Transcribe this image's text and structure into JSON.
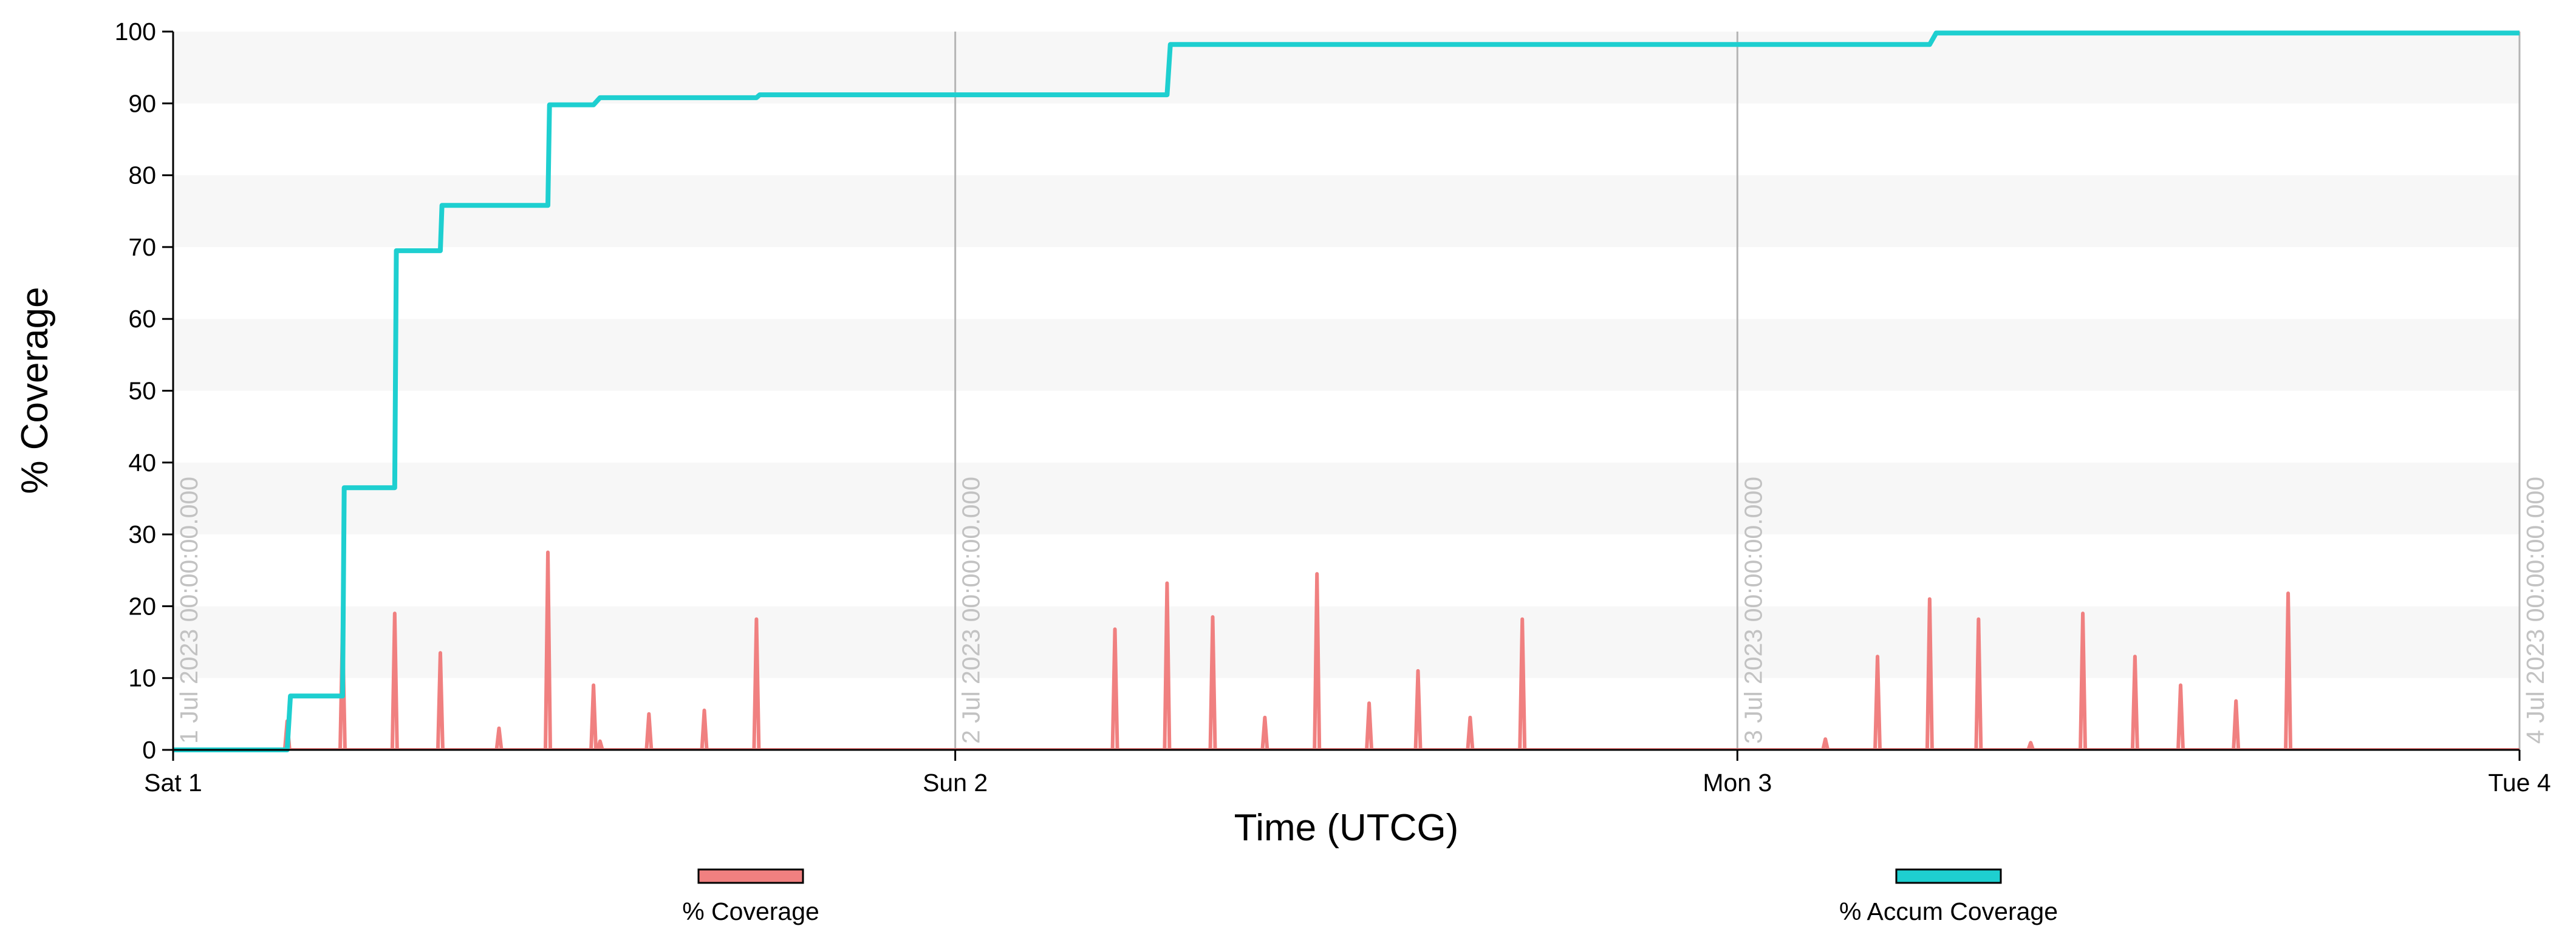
{
  "chart_data": {
    "type": "line",
    "xlabel": "Time (UTCG)",
    "ylabel": "% Coverage",
    "ylim": [
      0,
      100
    ],
    "yticks": [
      0,
      10,
      20,
      30,
      40,
      50,
      60,
      70,
      80,
      90,
      100
    ],
    "xlim_hours": [
      0,
      72
    ],
    "xticks": [
      {
        "hour": 0,
        "label": "Sat 1"
      },
      {
        "hour": 24,
        "label": "Sun 2"
      },
      {
        "hour": 48,
        "label": "Mon 3"
      },
      {
        "hour": 72,
        "label": "Tue 4"
      }
    ],
    "date_markers": [
      {
        "hour": 0,
        "label": "1 Jul 2023 00:00:00.000"
      },
      {
        "hour": 24,
        "label": "2 Jul 2023 00:00:00.000"
      },
      {
        "hour": 48,
        "label": "3 Jul 2023 00:00:00.000"
      },
      {
        "hour": 72,
        "label": "4 Jul 2023 00:00:00.000"
      }
    ],
    "grid": "horizontal-bands",
    "legend_position": "bottom",
    "series": [
      {
        "name": "% Coverage",
        "color": "#f08080",
        "style": "spikes",
        "points": [
          [
            3.5,
            4
          ],
          [
            5.2,
            17
          ],
          [
            6.8,
            19
          ],
          [
            8.2,
            13.5
          ],
          [
            10.0,
            3
          ],
          [
            11.5,
            27.5
          ],
          [
            12.9,
            9
          ],
          [
            13.1,
            1.2
          ],
          [
            14.6,
            5
          ],
          [
            16.3,
            5.5
          ],
          [
            17.9,
            18.2
          ],
          [
            28.9,
            16.8
          ],
          [
            30.5,
            23.2
          ],
          [
            31.9,
            18.5
          ],
          [
            33.5,
            4.5
          ],
          [
            35.1,
            24.5
          ],
          [
            36.7,
            6.5
          ],
          [
            38.2,
            11
          ],
          [
            39.8,
            4.5
          ],
          [
            41.4,
            18.2
          ],
          [
            50.7,
            1.5
          ],
          [
            52.3,
            13
          ],
          [
            53.9,
            21
          ],
          [
            55.4,
            18.2
          ],
          [
            57.0,
            1
          ],
          [
            58.6,
            19
          ],
          [
            60.2,
            13
          ],
          [
            61.6,
            9
          ],
          [
            63.3,
            6.8
          ],
          [
            64.9,
            21.8
          ]
        ]
      },
      {
        "name": "% Accum Coverage",
        "color": "#1ecfd0",
        "style": "step",
        "points": [
          [
            0,
            0
          ],
          [
            3.5,
            0
          ],
          [
            3.6,
            7.5
          ],
          [
            5.2,
            7.5
          ],
          [
            5.25,
            36.5
          ],
          [
            6.8,
            36.5
          ],
          [
            6.85,
            69.5
          ],
          [
            8.2,
            69.5
          ],
          [
            8.25,
            75.8
          ],
          [
            11.5,
            75.8
          ],
          [
            11.55,
            89.8
          ],
          [
            12.9,
            89.8
          ],
          [
            13.1,
            90.8
          ],
          [
            17.9,
            90.8
          ],
          [
            18.0,
            91.2
          ],
          [
            30.5,
            91.2
          ],
          [
            30.6,
            98.2
          ],
          [
            53.9,
            98.2
          ],
          [
            54.1,
            99.8
          ],
          [
            72,
            99.8
          ]
        ]
      }
    ]
  }
}
